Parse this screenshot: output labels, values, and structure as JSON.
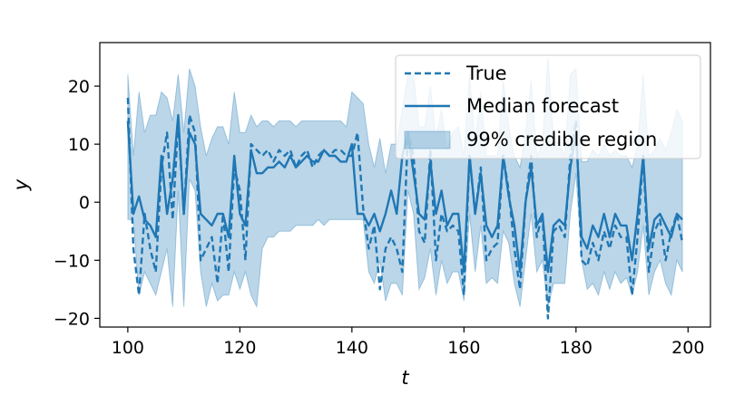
{
  "chart_data": {
    "type": "line",
    "title": "",
    "xlabel": "t",
    "ylabel": "y",
    "xlim": [
      95,
      204
    ],
    "ylim": [
      -21.5,
      27.5
    ],
    "xticks": [
      100,
      120,
      140,
      160,
      180,
      200
    ],
    "yticks": [
      -20,
      -10,
      0,
      10,
      20
    ],
    "grid": false,
    "legend_placement": "top-right",
    "colors": {
      "line": "#1f77b4",
      "band": "#1f77b4"
    },
    "legend": [
      "True",
      "Median forecast",
      "99% credible region"
    ],
    "x": [
      100,
      101,
      102,
      103,
      104,
      105,
      106,
      107,
      108,
      109,
      110,
      111,
      112,
      113,
      114,
      115,
      116,
      117,
      118,
      119,
      120,
      121,
      122,
      123,
      124,
      125,
      126,
      127,
      128,
      129,
      130,
      131,
      132,
      133,
      134,
      135,
      136,
      137,
      138,
      139,
      140,
      141,
      142,
      143,
      144,
      145,
      146,
      147,
      148,
      149,
      150,
      151,
      152,
      153,
      154,
      155,
      156,
      157,
      158,
      159,
      160,
      161,
      162,
      163,
      164,
      165,
      166,
      167,
      168,
      169,
      170,
      171,
      172,
      173,
      174,
      175,
      176,
      177,
      178,
      179,
      180,
      181,
      182,
      183,
      184,
      185,
      186,
      187,
      188,
      189,
      190,
      191,
      192,
      193,
      194,
      195,
      196,
      197,
      198,
      199
    ],
    "series": [
      {
        "name": "True",
        "style": "dashed",
        "values": [
          18,
          -8,
          -16,
          -2,
          -8,
          -12,
          6,
          12,
          -3,
          14,
          -2,
          15,
          12,
          -10,
          -8,
          -6,
          -14,
          -2,
          -12,
          6,
          2,
          -10,
          10,
          9,
          8,
          9,
          7,
          9,
          8,
          9,
          6,
          8,
          9,
          6,
          8,
          9,
          8,
          9,
          9,
          8,
          8,
          12,
          -1,
          -8,
          -4,
          -15,
          -8,
          -6,
          -8,
          -12,
          12,
          8,
          -5,
          -7,
          9,
          -10,
          -2,
          -5,
          -4,
          -5,
          -16,
          8,
          -2,
          6,
          -10,
          -8,
          -7,
          8,
          2,
          -8,
          -15,
          0,
          8,
          -6,
          -2,
          -20,
          -5,
          -4,
          -6,
          8,
          14,
          -10,
          -11,
          -7,
          -10,
          -5,
          -8,
          -4,
          -6,
          -6,
          -16,
          -6,
          8,
          -12,
          -5,
          -3,
          -10,
          -5,
          -2,
          -7
        ]
      },
      {
        "name": "Median forecast",
        "style": "solid",
        "values": [
          14,
          -2,
          1,
          -3,
          -4,
          -6,
          8,
          -2,
          4,
          15,
          -2,
          12,
          10,
          -2,
          -3,
          -4,
          -2,
          -2,
          -6,
          8,
          -2,
          -4,
          9,
          5,
          5,
          6,
          6,
          7,
          6,
          8,
          6,
          7,
          8,
          7,
          7,
          9,
          8,
          8,
          7,
          7,
          10,
          -2,
          -2,
          -4,
          -2,
          -5,
          -2,
          2,
          -2,
          8,
          12,
          5,
          -2,
          -3,
          7,
          -2,
          2,
          -4,
          -2,
          -2,
          -12,
          8,
          -2,
          5,
          -4,
          -6,
          -4,
          8,
          1,
          -4,
          -12,
          0,
          6,
          -4,
          -2,
          -12,
          -4,
          -3,
          -4,
          6,
          12,
          -6,
          -8,
          -4,
          -6,
          -2,
          -6,
          -2,
          -4,
          -4,
          -10,
          -2,
          8,
          -8,
          -3,
          -2,
          -4,
          -6,
          -2,
          -3
        ]
      }
    ],
    "band": {
      "name": "99% credible region",
      "lower": [
        -3,
        -3,
        -16,
        -12,
        -14,
        -16,
        -12,
        -8,
        -18,
        2,
        -18,
        4,
        2,
        -12,
        -18,
        -14,
        -17,
        -16,
        -16,
        -12,
        -15,
        -12,
        -16,
        -18,
        -8,
        -6,
        -6,
        -5,
        -5,
        -5,
        -4,
        -4,
        -4,
        -4,
        -3,
        -4,
        -3,
        -3,
        -3,
        -3,
        -3,
        -3,
        -3,
        -12,
        -14,
        -10,
        -17,
        -14,
        -14,
        -16,
        2,
        -2,
        -15,
        -13,
        -8,
        -16,
        -10,
        -14,
        -12,
        -12,
        -17,
        -2,
        -12,
        -4,
        -14,
        -13,
        -14,
        -5,
        -7,
        -14,
        -18,
        -10,
        -2,
        -12,
        -10,
        -18,
        -14,
        -14,
        -14,
        -2,
        5,
        -10,
        -15,
        -14,
        -16,
        -12,
        -15,
        -12,
        -14,
        -13,
        -16,
        -12,
        -4,
        -16,
        -12,
        -10,
        -14,
        -16,
        -10,
        -12
      ],
      "upper": [
        22,
        8,
        19,
        12,
        15,
        15,
        19,
        18,
        14,
        22,
        12,
        23,
        20,
        13,
        8,
        11,
        13,
        13,
        10,
        19,
        12,
        12,
        15,
        13,
        14,
        14,
        13,
        14,
        14,
        14,
        13,
        14,
        14,
        14,
        14,
        14,
        14,
        14,
        14,
        13,
        19,
        18,
        17,
        10,
        6,
        11,
        5,
        10,
        10,
        16,
        22,
        22,
        13,
        13,
        20,
        11,
        16,
        9,
        12,
        13,
        8,
        22,
        10,
        19,
        8,
        8,
        8,
        21,
        13,
        8,
        6,
        12,
        21,
        8,
        10,
        25,
        11,
        10,
        8,
        22,
        23,
        7,
        7,
        9,
        8,
        10,
        8,
        9,
        8,
        8,
        6,
        10,
        22,
        8,
        9,
        11,
        9,
        12,
        16,
        14
      ]
    }
  }
}
